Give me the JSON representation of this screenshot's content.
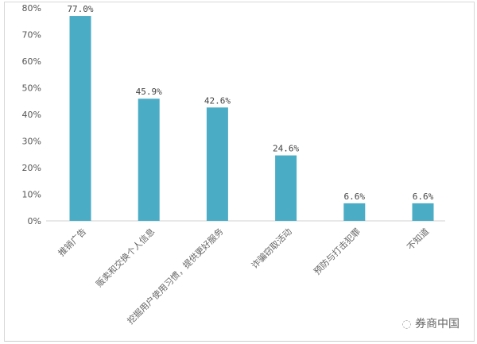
{
  "chart_data": {
    "type": "bar",
    "categories": [
      "推销广告",
      "贩卖和交换个人信息",
      "挖掘用户使用习惯，提供更好服务",
      "诈骗窃取活动",
      "预防与打击犯罪",
      "不知道"
    ],
    "values": [
      77.0,
      45.9,
      42.6,
      24.6,
      6.6,
      6.6
    ],
    "data_labels": [
      "77.0%",
      "45.9%",
      "42.6%",
      "24.6%",
      "6.6%",
      "6.6%"
    ],
    "title": "",
    "xlabel": "",
    "ylabel": "",
    "ylim": [
      0,
      80
    ],
    "yticks": [
      "0%",
      "10%",
      "20%",
      "30%",
      "40%",
      "50%",
      "60%",
      "70%",
      "80%"
    ],
    "grid": false,
    "bar_color": "#4bacc6"
  },
  "watermark": "券商中国"
}
